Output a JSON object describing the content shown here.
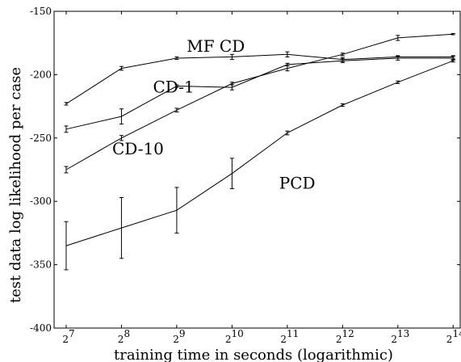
{
  "chart_data": {
    "type": "line",
    "title": "",
    "xlabel": "training time in seconds (logarithmic)",
    "ylabel": "test data log likelihood per case",
    "x_scale": "log2",
    "x_ticks": [
      {
        "value": 128,
        "base": "2",
        "exp": "7"
      },
      {
        "value": 256,
        "base": "2",
        "exp": "8"
      },
      {
        "value": 512,
        "base": "2",
        "exp": "9"
      },
      {
        "value": 1024,
        "base": "2",
        "exp": "10"
      },
      {
        "value": 2048,
        "base": "2",
        "exp": "11"
      },
      {
        "value": 4096,
        "base": "2",
        "exp": "12"
      },
      {
        "value": 8192,
        "base": "2",
        "exp": "13"
      },
      {
        "value": 16384,
        "base": "2",
        "exp": "14"
      }
    ],
    "xlim": [
      110,
      17900
    ],
    "ylim": [
      -400,
      -150
    ],
    "y_ticks": [
      -400,
      -350,
      -300,
      -250,
      -200,
      -150
    ],
    "grid": false,
    "legend": "none",
    "series": [
      {
        "name": "MF CD",
        "x": [
          128,
          256,
          512,
          1024,
          2048,
          4096,
          8192,
          16384
        ],
        "y": [
          -223,
          -195,
          -187,
          -186,
          -184,
          -188,
          -186,
          -186
        ],
        "err": [
          1,
          1.5,
          1,
          2,
          2,
          1.5,
          1,
          1
        ],
        "label_at": {
          "x": 580,
          "y": -182
        }
      },
      {
        "name": "CD-1",
        "x": [
          128,
          256,
          512,
          1024,
          2048,
          4096,
          8192,
          16384
        ],
        "y": [
          -243,
          -233,
          -209,
          -210,
          -192,
          -189,
          -187,
          -187
        ],
        "err": [
          2.5,
          6,
          1,
          2,
          1,
          1.5,
          1.5,
          1.5
        ],
        "label_at": {
          "x": 380,
          "y": -214
        }
      },
      {
        "name": "CD-10",
        "x": [
          128,
          256,
          512,
          1024,
          2048,
          4096,
          8192,
          16384
        ],
        "y": [
          -275,
          -250,
          -228,
          -207,
          -195,
          -184,
          -171,
          -168
        ],
        "err": [
          2.5,
          2,
          1.5,
          1,
          2,
          1,
          2,
          0.5
        ],
        "label_at": {
          "x": 228,
          "y": -263
        }
      },
      {
        "name": "PCD",
        "x": [
          128,
          256,
          512,
          1024,
          2048,
          4096,
          8192,
          16384
        ],
        "y": [
          -335,
          -321,
          -307,
          -278,
          -246,
          -224,
          -206,
          -189
        ],
        "err": [
          19,
          24,
          18,
          12,
          1.5,
          1,
          1,
          1
        ],
        "label_at": {
          "x": 1850,
          "y": -290
        }
      }
    ]
  }
}
